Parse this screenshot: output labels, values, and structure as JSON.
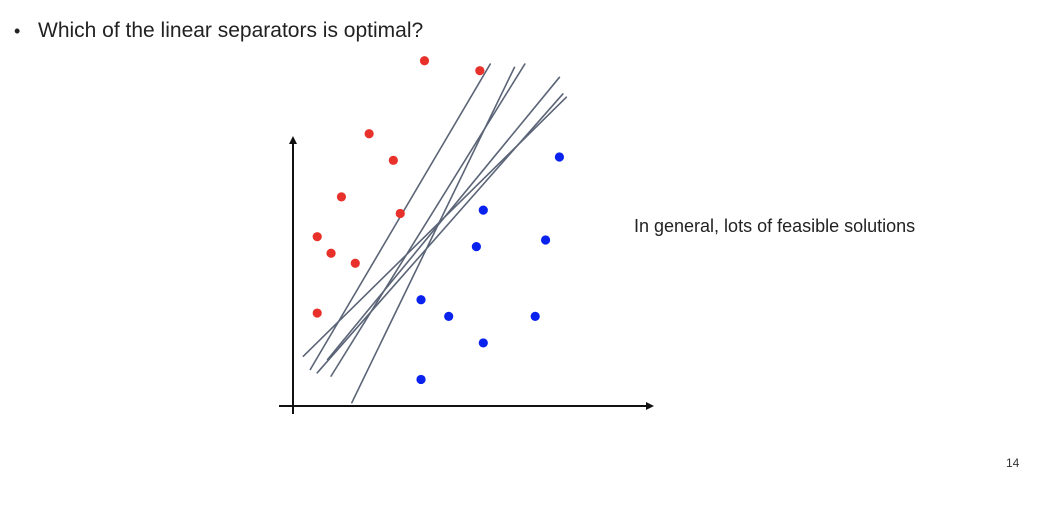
{
  "slide": {
    "bullet_symbol": "•",
    "question": "Which of the linear separators is optimal?",
    "side_note": "In general, lots of feasible solutions",
    "page_number": "14"
  },
  "colors": {
    "red_class": "#e8312a",
    "blue_class": "#0a22ee",
    "separator_line": "#5b6577",
    "axis": "#111111"
  },
  "chart_data": {
    "type": "scatter",
    "xlim": [
      0,
      100
    ],
    "ylim": [
      0,
      100
    ],
    "series": [
      {
        "color": "#e8312a",
        "points": [
          [
            38,
            104
          ],
          [
            54,
            101
          ],
          [
            22,
            82
          ],
          [
            29,
            74
          ],
          [
            14,
            63
          ],
          [
            31,
            58
          ],
          [
            7,
            51
          ],
          [
            11,
            46
          ],
          [
            18,
            43
          ],
          [
            7,
            28
          ]
        ]
      },
      {
        "color": "#0a22ee",
        "points": [
          [
            77,
            75
          ],
          [
            55,
            59
          ],
          [
            53,
            48
          ],
          [
            73,
            50
          ],
          [
            37,
            32
          ],
          [
            45,
            27
          ],
          [
            70,
            27
          ],
          [
            55,
            19
          ],
          [
            37,
            8
          ]
        ]
      }
    ],
    "separators": [
      [
        [
          5,
          11
        ],
        [
          57,
          103
        ]
      ],
      [
        [
          11,
          9
        ],
        [
          67,
          103
        ]
      ],
      [
        [
          10,
          14
        ],
        [
          77,
          99
        ]
      ],
      [
        [
          3,
          15
        ],
        [
          79,
          93
        ]
      ],
      [
        [
          7,
          10
        ],
        [
          78,
          94
        ]
      ],
      [
        [
          17,
          1
        ],
        [
          64,
          102
        ]
      ]
    ]
  }
}
